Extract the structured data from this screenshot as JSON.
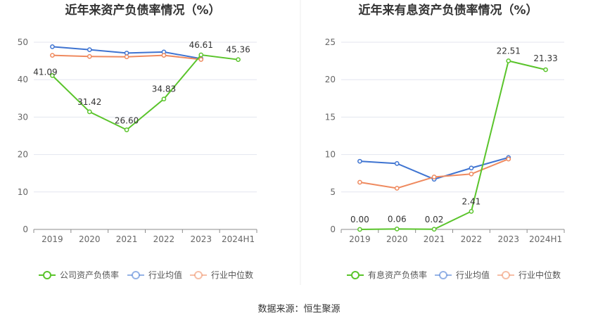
{
  "colors": {
    "company": "#5ac42b",
    "industry_avg": "#3f74d1",
    "industry_median": "#ef8a5f",
    "grid": "#e3e6ef",
    "axis": "#8c8c8c"
  },
  "source_text": "数据来源：恒生聚源",
  "chart_data": [
    {
      "type": "line",
      "title": "近年来资产负债率情况（%）",
      "categories": [
        "2019",
        "2020",
        "2021",
        "2022",
        "2023",
        "2024H1"
      ],
      "y_ticks": [
        "0",
        "10",
        "20",
        "30",
        "40",
        "50"
      ],
      "ylim": [
        0,
        50
      ],
      "grid": true,
      "legend_position": "bottom",
      "series": [
        {
          "name": "公司资产负债率",
          "color": "#5ac42b",
          "values": [
            41.09,
            31.42,
            26.6,
            34.83,
            46.61,
            45.36
          ],
          "labels": [
            "41.09",
            "31.42",
            "26.60",
            "34.83",
            "46.61",
            "45.36"
          ]
        },
        {
          "name": "行业均值",
          "color": "#3f74d1",
          "values": [
            48.8,
            48.0,
            47.1,
            47.4,
            45.6,
            null
          ]
        },
        {
          "name": "行业中位数",
          "color": "#ef8a5f",
          "values": [
            46.5,
            46.2,
            46.1,
            46.5,
            45.4,
            null
          ]
        }
      ]
    },
    {
      "type": "line",
      "title": "近年来有息资产负债率情况（%）",
      "categories": [
        "2019",
        "2020",
        "2021",
        "2022",
        "2023",
        "2024H1"
      ],
      "y_ticks": [
        "0",
        "5",
        "10",
        "15",
        "20",
        "25"
      ],
      "ylim": [
        0,
        25
      ],
      "grid": true,
      "legend_position": "bottom",
      "series": [
        {
          "name": "有息资产负债率",
          "color": "#5ac42b",
          "values": [
            0.0,
            0.06,
            0.02,
            2.41,
            22.51,
            21.33
          ],
          "labels": [
            "0.00",
            "0.06",
            "0.02",
            "2.41",
            "22.51",
            "21.33"
          ]
        },
        {
          "name": "行业均值",
          "color": "#3f74d1",
          "values": [
            9.1,
            8.8,
            6.7,
            8.2,
            9.6,
            null
          ]
        },
        {
          "name": "行业中位数",
          "color": "#ef8a5f",
          "values": [
            6.3,
            5.5,
            7.0,
            7.4,
            9.4,
            null
          ]
        }
      ]
    }
  ]
}
